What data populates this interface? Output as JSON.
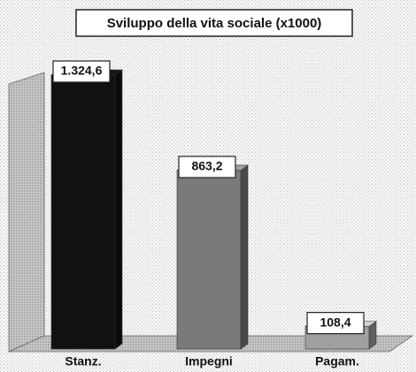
{
  "chart_data": {
    "type": "bar3d",
    "title": "Sviluppo della vita sociale (x1000)",
    "categories": [
      "Stanz.",
      "Impegni",
      "Pagam."
    ],
    "values": [
      1324.6,
      863.2,
      108.4
    ],
    "value_labels": [
      "1.324,6",
      "863,2",
      "108,4"
    ],
    "colors": [
      "#111111",
      "#7a7a7a",
      "#a0a0a0"
    ]
  }
}
